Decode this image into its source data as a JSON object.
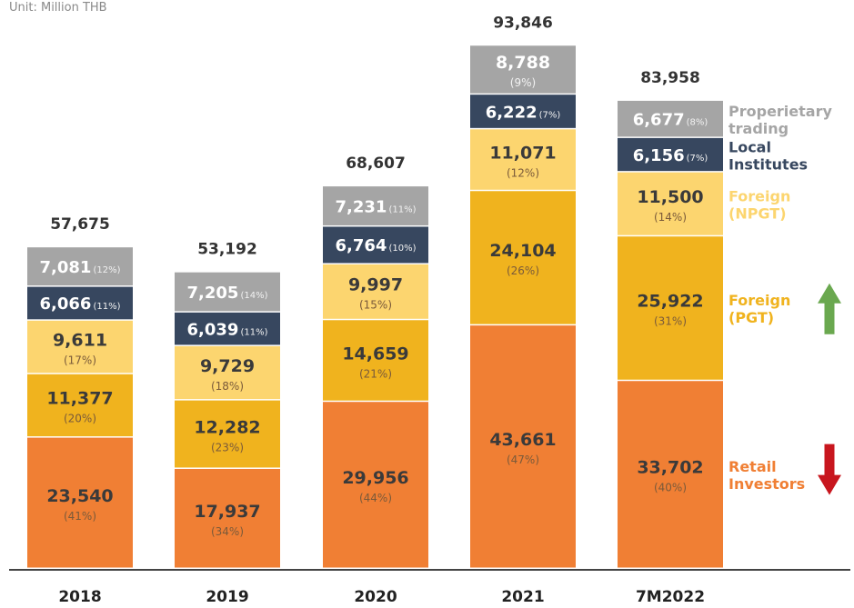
{
  "chart_data": {
    "type": "bar",
    "stacked": true,
    "unit_label": "Unit: Million THB",
    "categories": [
      "2018",
      "2019",
      "2020",
      "2021",
      "7M2022"
    ],
    "totals": [
      "57,675",
      "53,192",
      "68,607",
      "93,846",
      "83,958"
    ],
    "series": [
      {
        "name": "Retail Investors",
        "color": "#f07f34",
        "values": [
          23540,
          17937,
          29956,
          43661,
          33702
        ],
        "value_labels": [
          "23,540",
          "17,937",
          "29,956",
          "43,661",
          "33,702"
        ],
        "pct_labels": [
          "(41%)",
          "(34%)",
          "(44%)",
          "(47%)",
          "(40%)"
        ]
      },
      {
        "name": "Foreign (PGT)",
        "color": "#f0b31e",
        "values": [
          11377,
          12282,
          14659,
          24104,
          25922
        ],
        "value_labels": [
          "11,377",
          "12,282",
          "14,659",
          "24,104",
          "25,922"
        ],
        "pct_labels": [
          "(20%)",
          "(23%)",
          "(21%)",
          "(26%)",
          "(31%)"
        ]
      },
      {
        "name": "Foreign (NPGT)",
        "color": "#fcd56f",
        "values": [
          9611,
          9729,
          9997,
          11071,
          11500
        ],
        "value_labels": [
          "9,611",
          "9,729",
          "9,997",
          "11,071",
          "11,500"
        ],
        "pct_labels": [
          "(17%)",
          "(18%)",
          "(15%)",
          "(12%)",
          "(14%)"
        ]
      },
      {
        "name": "Local Institutes",
        "color": "#37475f",
        "values": [
          6066,
          6039,
          6764,
          6222,
          6156
        ],
        "value_labels": [
          "6,066",
          "6,039",
          "6,764",
          "6,222",
          "6,156"
        ],
        "pct_labels": [
          "(11%)",
          "(11%)",
          "(10%)",
          "(7%)",
          "(7%)"
        ]
      },
      {
        "name": "Properietary trading",
        "color": "#a5a5a5",
        "values": [
          7081,
          7205,
          7231,
          8788,
          6677
        ],
        "value_labels": [
          "7,081",
          "7,205",
          "7,231",
          "8,788",
          "6,677"
        ],
        "pct_labels": [
          "(12%)",
          "(14%)",
          "(11%)",
          "(9%)",
          "(8%)"
        ]
      }
    ],
    "legend": [
      {
        "lines": [
          "Retail",
          "Investors"
        ],
        "color": "#f07f34",
        "arrow": "down",
        "arrow_color": "#c8161e"
      },
      {
        "lines": [
          "Foreign",
          "(PGT)"
        ],
        "color": "#f0b31e",
        "arrow": "up",
        "arrow_color": "#6aa84f"
      },
      {
        "lines": [
          "Foreign",
          "(NPGT)"
        ],
        "color": "#fcd56f",
        "arrow": null,
        "arrow_color": null
      },
      {
        "lines": [
          "Local",
          "Institutes"
        ],
        "color": "#37475f",
        "arrow": null,
        "arrow_color": null
      },
      {
        "lines": [
          "Properietary",
          "trading"
        ],
        "color": "#a5a5a5",
        "arrow": null,
        "arrow_color": null
      }
    ],
    "legend_placement": "right",
    "grid": false
  }
}
